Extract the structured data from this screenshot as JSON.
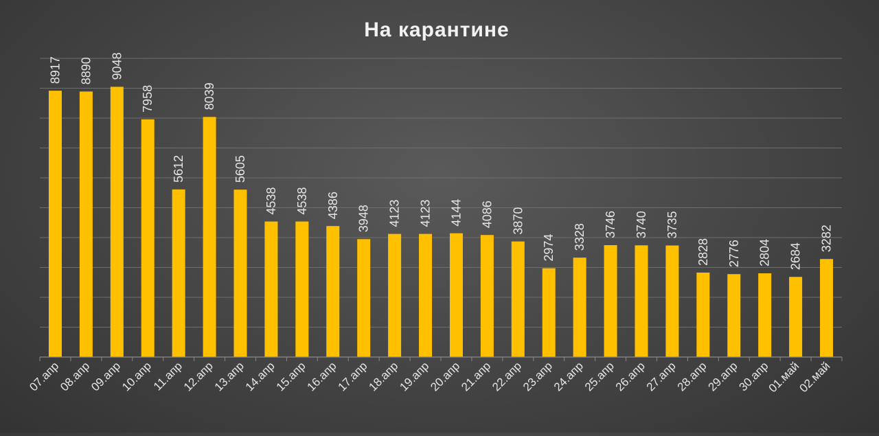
{
  "chart_data": {
    "type": "bar",
    "title": "На карантине",
    "xlabel": "",
    "ylabel": "",
    "categories": [
      "07.апр",
      "08.апр",
      "09.апр",
      "10.апр",
      "11.апр",
      "12.апр",
      "13.апр",
      "14.апр",
      "15.апр",
      "16.апр",
      "17.апр",
      "18.апр",
      "19.апр",
      "20.апр",
      "21.апр",
      "22.апр",
      "23.апр",
      "24.апр",
      "25.апр",
      "26.апр",
      "27.апр",
      "28.апр",
      "29.апр",
      "30.апр",
      "01.май",
      "02.май"
    ],
    "values": [
      8917,
      8890,
      9048,
      7958,
      5612,
      8039,
      5605,
      4538,
      4538,
      4386,
      3948,
      4123,
      4123,
      4144,
      4086,
      3870,
      2974,
      3328,
      3746,
      3740,
      3735,
      2828,
      2776,
      2804,
      2684,
      3282
    ],
    "ylim": [
      0,
      10000
    ],
    "gridlines": true,
    "y_axis_labels_shown": false,
    "bar_color": "#FFC000",
    "background_color": "#444444",
    "text_color": "#E6E6E6"
  }
}
